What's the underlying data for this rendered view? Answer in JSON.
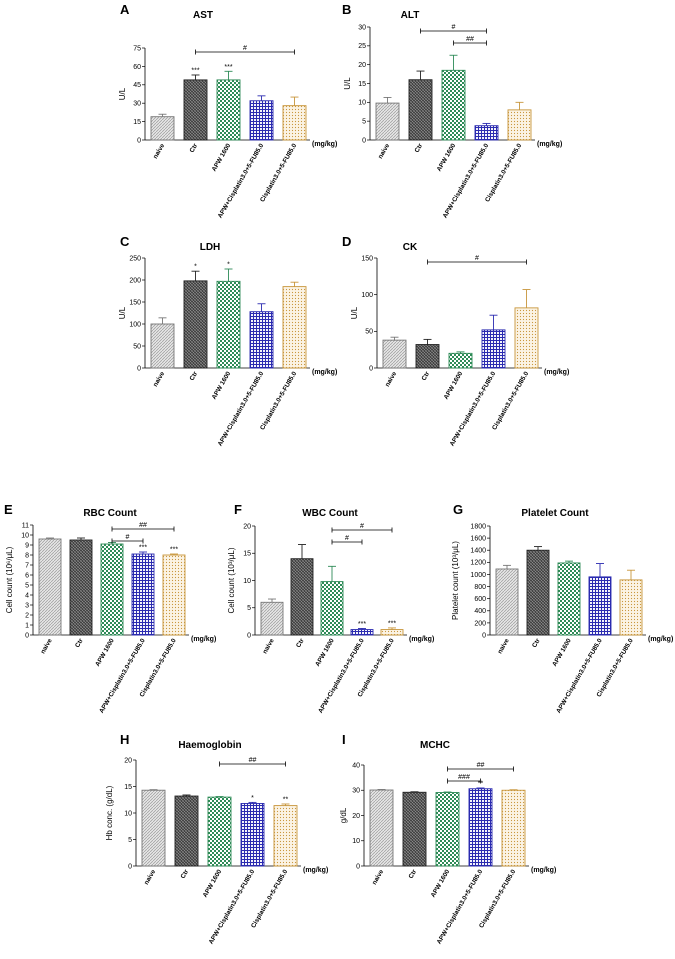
{
  "figure": {
    "group_colors": [
      "#777777",
      "#222222",
      "#2e8b57",
      "#2b2bb0",
      "#c8963c"
    ],
    "group_fills": [
      "#d8d8d8",
      "#333333",
      "#3a9a6a",
      "#3a3ad0",
      "#f0e0c0"
    ]
  },
  "chart_data": [
    {
      "type": "bar",
      "panel": "A",
      "title": "AST",
      "ylabel": "U/L",
      "categories": [
        "naive",
        "Ctr",
        "APW 1600",
        "APW+Cisplatin3.0+5-FU85.0",
        "Cisplatin3.0+5-FU85.0"
      ],
      "unit_label": "(mg/kg)",
      "values": [
        19,
        49,
        49,
        32,
        28
      ],
      "errors": [
        2,
        4,
        7,
        4,
        7
      ],
      "ylim": [
        0,
        75
      ],
      "yticks": [
        0,
        15,
        30,
        45,
        60,
        75
      ],
      "bar_annotations": [
        "",
        "***",
        "***",
        "",
        ""
      ],
      "brackets": [
        {
          "from": 1,
          "to": 4,
          "label": "#"
        }
      ]
    },
    {
      "type": "bar",
      "panel": "B",
      "title": "ALT",
      "ylabel": "U/L",
      "categories": [
        "naive",
        "Ctr",
        "APW 1600",
        "APW+Cisplatin3.0+5-FU85.0",
        "Cisplatin3.0+5-FU85.0"
      ],
      "unit_label": "(mg/kg)",
      "values": [
        9.8,
        16,
        18.5,
        3.8,
        8
      ],
      "errors": [
        1.5,
        2.3,
        4,
        0.6,
        2
      ],
      "ylim": [
        0,
        30
      ],
      "yticks": [
        0,
        5,
        10,
        15,
        20,
        25,
        30
      ],
      "bar_annotations": [
        "",
        "",
        "",
        "",
        ""
      ],
      "brackets": [
        {
          "from": 1,
          "to": 3,
          "label": "#"
        },
        {
          "from": 2,
          "to": 3,
          "label": "##"
        }
      ]
    },
    {
      "type": "bar",
      "panel": "C",
      "title": "LDH",
      "ylabel": "U/L",
      "categories": [
        "naive",
        "Ctr",
        "APW 1600",
        "APW+Cisplatin3.0+5-FU85.0",
        "Cisplatin3.0+5-FU85.0"
      ],
      "unit_label": "(mg/kg)",
      "values": [
        100,
        198,
        197,
        128,
        185
      ],
      "errors": [
        14,
        22,
        28,
        18,
        10
      ],
      "ylim": [
        0,
        250
      ],
      "yticks": [
        0,
        50,
        100,
        150,
        200,
        250
      ],
      "bar_annotations": [
        "",
        "*",
        "*",
        "",
        ""
      ],
      "brackets": []
    },
    {
      "type": "bar",
      "panel": "D",
      "title": "CK",
      "ylabel": "U/L",
      "categories": [
        "naive",
        "Ctr",
        "APW 1600",
        "APW+Cisplatin3.0+5-FU85.0",
        "Cisplatin3.0+5-FU85.0"
      ],
      "unit_label": "(mg/kg)",
      "values": [
        38,
        32,
        20,
        52,
        82
      ],
      "errors": [
        4,
        7,
        2,
        20,
        25
      ],
      "ylim": [
        0,
        150
      ],
      "yticks": [
        0,
        50,
        100,
        150
      ],
      "bar_annotations": [
        "",
        "",
        "",
        "",
        ""
      ],
      "brackets": [
        {
          "from": 1,
          "to": 4,
          "label": "#"
        }
      ]
    },
    {
      "type": "bar",
      "panel": "E",
      "title": "RBC Count",
      "ylabel": "Cell count (10⁶/μL)",
      "categories": [
        "naive",
        "Ctr",
        "APW 1600",
        "APW+Cisplatin3.0+5-FU85.0",
        "Cisplatin3.0+5-FU85.0"
      ],
      "unit_label": "(mg/kg)",
      "values": [
        9.6,
        9.5,
        9.1,
        8.1,
        8.0
      ],
      "errors": [
        0.1,
        0.2,
        0.15,
        0.2,
        0.1
      ],
      "ylim": [
        0,
        11
      ],
      "yticks": [
        0,
        1,
        2,
        3,
        4,
        5,
        6,
        7,
        8,
        9,
        10,
        11
      ],
      "bar_annotations": [
        "",
        "",
        "",
        "***",
        "***"
      ],
      "brackets": [
        {
          "from": 2,
          "to": 4,
          "label": "##"
        },
        {
          "from": 2,
          "to": 3,
          "label": "#"
        }
      ]
    },
    {
      "type": "bar",
      "panel": "F",
      "title": "WBC Count",
      "ylabel": "Cell count (10³/μL)",
      "categories": [
        "naive",
        "Ctr",
        "APW 1600",
        "APW+Cisplatin3.0+5-FU85.0",
        "Cisplatin3.0+5-FU85.0"
      ],
      "unit_label": "(mg/kg)",
      "values": [
        6,
        14,
        9.8,
        1,
        1
      ],
      "errors": [
        0.6,
        2.6,
        2.8,
        0.2,
        0.3
      ],
      "ylim": [
        0,
        20
      ],
      "yticks": [
        0,
        5,
        10,
        15,
        20
      ],
      "bar_annotations": [
        "",
        "",
        "",
        "***",
        "***"
      ],
      "brackets": [
        {
          "from": 2,
          "to": 4,
          "label": "#"
        },
        {
          "from": 2,
          "to": 3,
          "label": "#"
        }
      ]
    },
    {
      "type": "bar",
      "panel": "G",
      "title": "Platelet Count",
      "ylabel": "Platelet count (10³/μL)",
      "categories": [
        "naive",
        "Ctr",
        "APW 1600",
        "APW+Cisplatin3.0+5-FU85.0",
        "Cisplatin3.0+5-FU85.0"
      ],
      "unit_label": "(mg/kg)",
      "values": [
        1090,
        1400,
        1190,
        960,
        910
      ],
      "errors": [
        60,
        60,
        30,
        220,
        160
      ],
      "ylim": [
        0,
        1800
      ],
      "yticks": [
        0,
        200,
        400,
        600,
        800,
        1000,
        1200,
        1400,
        1600,
        1800
      ],
      "bar_annotations": [
        "",
        "",
        "",
        "",
        ""
      ],
      "brackets": []
    },
    {
      "type": "bar",
      "panel": "H",
      "title": "Haemoglobin",
      "ylabel": "Hb conc. (g/dL)",
      "categories": [
        "naive",
        "Ctr",
        "APW 1600",
        "APW+Cisplatin3.0+5-FU85.0",
        "Cisplatin3.0+5-FU85.0"
      ],
      "unit_label": "(mg/kg)",
      "values": [
        14.3,
        13.2,
        13.0,
        11.8,
        11.4
      ],
      "errors": [
        0.1,
        0.2,
        0.1,
        0.2,
        0.3
      ],
      "ylim": [
        0,
        20
      ],
      "yticks": [
        0,
        5,
        10,
        15,
        20
      ],
      "bar_annotations": [
        "",
        "",
        "",
        "*",
        "**"
      ],
      "brackets": [
        {
          "from": 2,
          "to": 4,
          "label": "##"
        }
      ]
    },
    {
      "type": "bar",
      "panel": "I",
      "title": "MCHC",
      "ylabel": "g/dL",
      "categories": [
        "naive",
        "Ctr",
        "APW 1600",
        "APW+Cisplatin3.0+5-FU85.0",
        "Cisplatin3.0+5-FU85.0"
      ],
      "unit_label": "(mg/kg)",
      "values": [
        30.1,
        29.2,
        29.1,
        30.6,
        30.0
      ],
      "errors": [
        0.2,
        0.2,
        0.2,
        0.3,
        0.2
      ],
      "ylim": [
        0,
        40
      ],
      "yticks": [
        0,
        10,
        20,
        30,
        40
      ],
      "bar_annotations": [
        "",
        "",
        "",
        "**",
        ""
      ],
      "brackets": [
        {
          "from": 2,
          "to": 4,
          "label": "##"
        },
        {
          "from": 2,
          "to": 3,
          "label": "###"
        }
      ]
    }
  ]
}
